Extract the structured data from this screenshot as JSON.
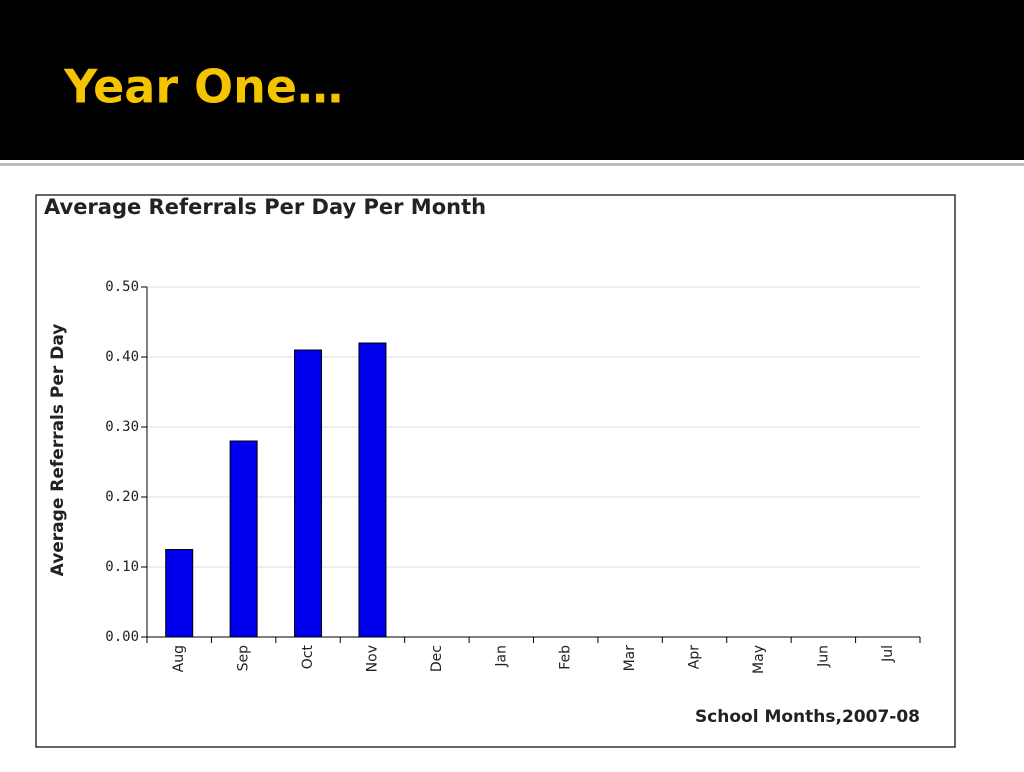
{
  "title": "Year One…",
  "chart_data": {
    "type": "bar",
    "title": "Average Referrals Per Day Per Month",
    "x_label": "School Months,2007-08",
    "y_label": "Average Referrals Per Day",
    "categories": [
      "Aug",
      "Sep",
      "Oct",
      "Nov",
      "Dec",
      "Jan",
      "Feb",
      "Mar",
      "Apr",
      "May",
      "Jun",
      "Jul"
    ],
    "values": [
      0.125,
      0.28,
      0.41,
      0.42,
      null,
      null,
      null,
      null,
      null,
      null,
      null,
      null
    ],
    "color": "#0000ee",
    "ylim": [
      0,
      0.5
    ],
    "yticks": [
      {
        "value": 0,
        "label": "0.00"
      },
      {
        "value": 0.1,
        "label": "0.10"
      },
      {
        "value": 0.2,
        "label": "0.20"
      },
      {
        "value": 0.3,
        "label": "0.30"
      },
      {
        "value": 0.4,
        "label": "0.40"
      },
      {
        "value": 0.5,
        "label": "0.50"
      }
    ],
    "grid": true
  }
}
